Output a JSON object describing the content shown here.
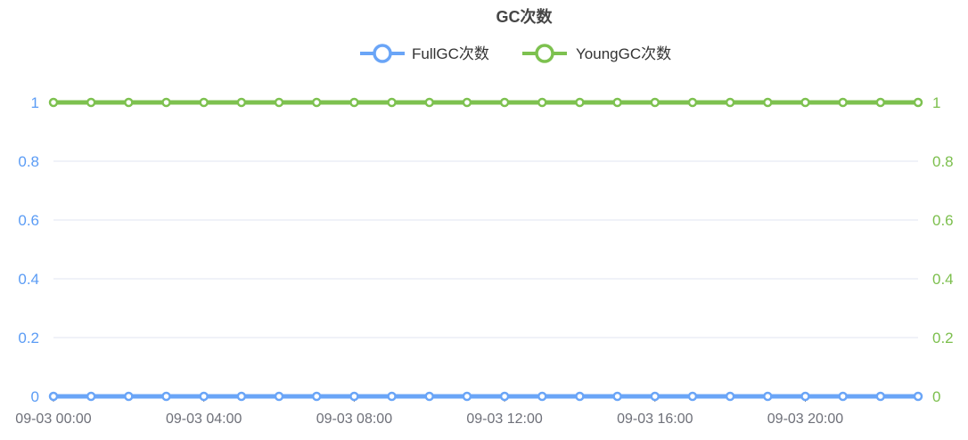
{
  "chart_data": {
    "type": "line",
    "title": "GC次数",
    "legend_position": "top-center",
    "grid": true,
    "x": [
      "09-03 00:00",
      "09-03 01:00",
      "09-03 02:00",
      "09-03 03:00",
      "09-03 04:00",
      "09-03 05:00",
      "09-03 06:00",
      "09-03 07:00",
      "09-03 08:00",
      "09-03 09:00",
      "09-03 10:00",
      "09-03 11:00",
      "09-03 12:00",
      "09-03 13:00",
      "09-03 14:00",
      "09-03 15:00",
      "09-03 16:00",
      "09-03 17:00",
      "09-03 18:00",
      "09-03 19:00",
      "09-03 20:00",
      "09-03 21:00",
      "09-03 22:00",
      "09-03 23:00"
    ],
    "x_tick_labels": [
      "09-03 00:00",
      "09-03 04:00",
      "09-03 08:00",
      "09-03 12:00",
      "09-03 16:00",
      "09-03 20:00"
    ],
    "y_left": {
      "ticks": [
        "0",
        "0.2",
        "0.4",
        "0.6",
        "0.8",
        "1"
      ],
      "range": [
        0,
        1
      ],
      "color": "#5b9cf5"
    },
    "y_right": {
      "ticks": [
        "0",
        "0.2",
        "0.4",
        "0.6",
        "0.8",
        "1"
      ],
      "range": [
        0,
        1
      ],
      "color": "#7cbf4d"
    },
    "series": [
      {
        "name": "FullGC次数",
        "color": "#6aa5f7",
        "axis": "left",
        "values": [
          0,
          0,
          0,
          0,
          0,
          0,
          0,
          0,
          0,
          0,
          0,
          0,
          0,
          0,
          0,
          0,
          0,
          0,
          0,
          0,
          0,
          0,
          0,
          0
        ]
      },
      {
        "name": "YoungGC次数",
        "color": "#7dc14f",
        "axis": "right",
        "values": [
          1,
          1,
          1,
          1,
          1,
          1,
          1,
          1,
          1,
          1,
          1,
          1,
          1,
          1,
          1,
          1,
          1,
          1,
          1,
          1,
          1,
          1,
          1,
          1
        ]
      }
    ]
  }
}
